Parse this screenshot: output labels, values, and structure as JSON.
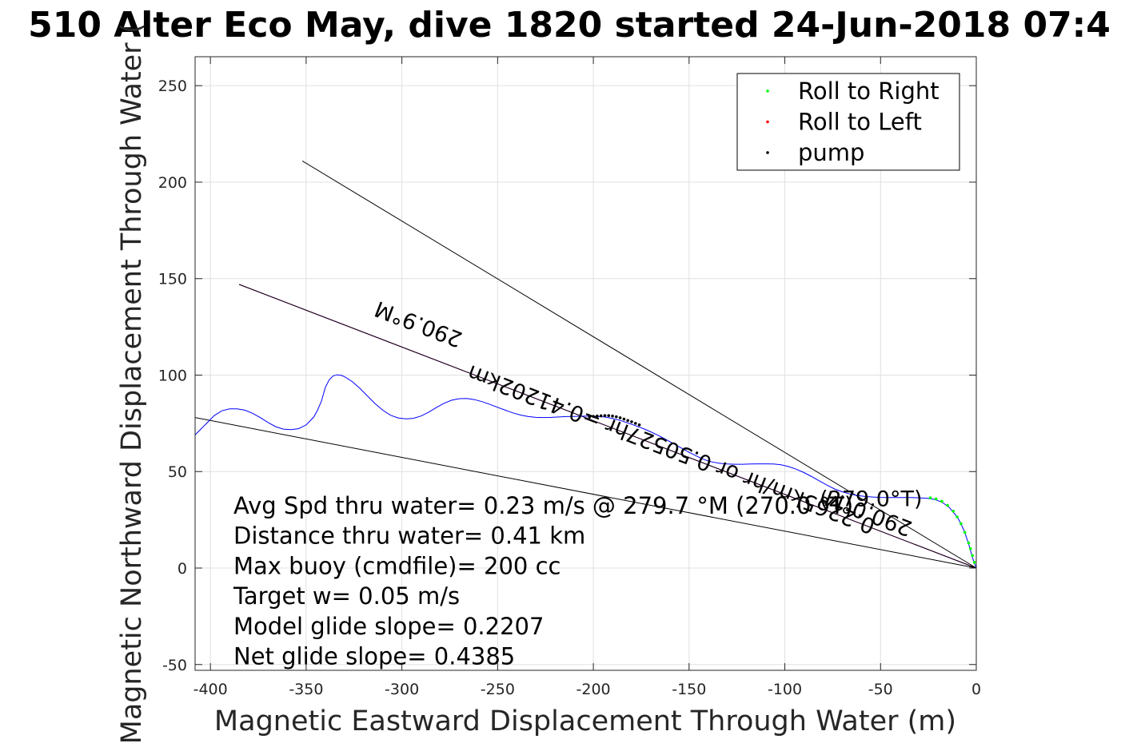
{
  "chart_data": {
    "type": "line",
    "title": "510 Alter Eco May, dive 1820 started 24-Jun-2018 07:4",
    "xlabel": "Magnetic Eastward Displacement Through Water (m)",
    "ylabel": "Magnetic Northward Displacement Through Water (",
    "xlim": [
      -408,
      0
    ],
    "ylim": [
      -53,
      265
    ],
    "xticks": [
      -400,
      -350,
      -300,
      -250,
      -200,
      -150,
      -100,
      -50,
      0
    ],
    "yticks": [
      -50,
      0,
      50,
      100,
      150,
      200,
      250
    ],
    "grid": true,
    "legend_position": "top-right",
    "legend": [
      {
        "label": "Roll to Right",
        "color": "#00ff00"
      },
      {
        "label": "Roll to Left",
        "color": "#ff0000"
      },
      {
        "label": "pump",
        "color": "#000000"
      }
    ],
    "series": [
      {
        "color": "#0000ff",
        "x": [
          -408,
          -406,
          -402,
          -398,
          -394,
          -390,
          -386,
          -382,
          -378,
          -374,
          -370,
          -366,
          -362,
          -358,
          -354,
          -350,
          -346,
          -344,
          -342,
          -341,
          -340,
          -338,
          -336,
          -334,
          -332,
          -330,
          -326,
          -322,
          -318,
          -314,
          -310,
          -306,
          -302,
          -298,
          -294,
          -290,
          -286,
          -282,
          -278,
          -274,
          -270,
          -266,
          -262,
          -258,
          -254,
          -250,
          -246,
          -242,
          -238,
          -234,
          -230,
          -226,
          -222,
          -218,
          -214,
          -210,
          -206,
          -202,
          -198,
          -194,
          -190,
          -186,
          -182,
          -178,
          -174,
          -170,
          -166,
          -162,
          -158,
          -154,
          -150,
          -146,
          -142,
          -138,
          -134,
          -130,
          -126,
          -122,
          -118,
          -114,
          -110,
          -106,
          -102,
          -98,
          -94,
          -90,
          -86,
          -82,
          -78,
          -74,
          -70,
          -66,
          -62,
          -58,
          -54,
          -50,
          -46,
          -42,
          -38,
          -34,
          -30,
          -26,
          -22,
          -18,
          -14,
          -10,
          -8,
          -6,
          -4,
          -2,
          -1,
          0
        ],
        "y": [
          69,
          71,
          75,
          79,
          81.5,
          82.5,
          82.5,
          81.8,
          80.2,
          78,
          75.5,
          73.3,
          72,
          71.7,
          72.2,
          74.2,
          78.3,
          82,
          86.5,
          90,
          93.5,
          97.5,
          99.5,
          100.1,
          100,
          99.2,
          96.7,
          93.2,
          89.2,
          85.2,
          81.8,
          79.2,
          77.8,
          77.3,
          77.6,
          78.8,
          80.8,
          83.2,
          85.4,
          87,
          87.8,
          87.9,
          87.3,
          86.2,
          84.8,
          83.3,
          81.8,
          80.4,
          79.3,
          78.5,
          78.1,
          78,
          78.1,
          78.3,
          78.5,
          78.6,
          78.7,
          78.7,
          78.6,
          78.3,
          77.5,
          76.5,
          75.2,
          73.8,
          72.3,
          70.6,
          68.7,
          66.6,
          64.4,
          62.2,
          60,
          58,
          56.2,
          55,
          54.3,
          53.9,
          53.8,
          53.8,
          53.9,
          54,
          54,
          53.9,
          53.5,
          52.6,
          51.2,
          49.5,
          47.4,
          45.2,
          43,
          41,
          39.5,
          38.4,
          37.6,
          37.1,
          36.8,
          36.6,
          36.5,
          36.5,
          36.5,
          36.5,
          36.4,
          36.2,
          35.6,
          34.2,
          31.3,
          26.5,
          23,
          18.5,
          12.5,
          5.5,
          2.5,
          0
        ]
      },
      {
        "color": "#000000",
        "markers_only": true,
        "x": [
          -202,
          -200,
          -198,
          -196,
          -194,
          -192,
          -190,
          -188,
          -186,
          -184,
          -182,
          -180,
          -178,
          -176
        ],
        "y": [
          78.2,
          78.6,
          78.8,
          78.9,
          79,
          79,
          78.8,
          78.4,
          77.9,
          77.2,
          76.5,
          75.8,
          75,
          74.2
        ]
      },
      {
        "color": "#00ff00",
        "markers_only": true,
        "x": [
          -24,
          -21,
          -18,
          -15,
          -12,
          -10,
          -8,
          -6,
          -4,
          -3,
          -2,
          -1
        ],
        "y": [
          36.4,
          35.8,
          34.6,
          32.5,
          29.5,
          26.5,
          23,
          18.5,
          13,
          10,
          6.5,
          3
        ]
      }
    ],
    "reference_lines": [
      {
        "name": "magenta-track",
        "color": "#ff00ff",
        "from": [
          -385,
          147
        ],
        "to": [
          0,
          0
        ]
      },
      {
        "name": "black-track-parallel",
        "color": "#000000",
        "from": [
          -385,
          147
        ],
        "to": [
          0,
          0
        ]
      },
      {
        "name": "upper-heading-line",
        "color": "#000000",
        "from": [
          -352,
          211
        ],
        "to": [
          0,
          0
        ]
      },
      {
        "name": "lower-heading-line",
        "color": "#000000",
        "from": [
          -408,
          78
        ],
        "to": [
          0,
          0
        ]
      }
    ],
    "annotations": [
      {
        "text": "290.9°M",
        "x": -290,
        "y": 130,
        "rotation_deg": -159
      },
      {
        "text": "0.2265km/hr or 0.50527hr =0.41202km",
        "x": -158,
        "y": 65,
        "rotation_deg": -159
      },
      {
        "text": "290.0°M",
        "x": -55,
        "y": 32,
        "rotation_deg": -159
      },
      {
        "text": "(279.0°T)",
        "x": -55,
        "y": 32,
        "rotation_deg": 0
      }
    ],
    "stats": [
      "Avg Spd thru water=  0.23 m/s @ 279.7 °M (270.0 °T)",
      "Distance thru water=  0.41 km",
      "Max buoy (cmdfile)= 200 cc",
      "Target w= 0.05 m/s",
      "Model glide slope= 0.2207",
      "Net glide slope= 0.4385"
    ]
  }
}
